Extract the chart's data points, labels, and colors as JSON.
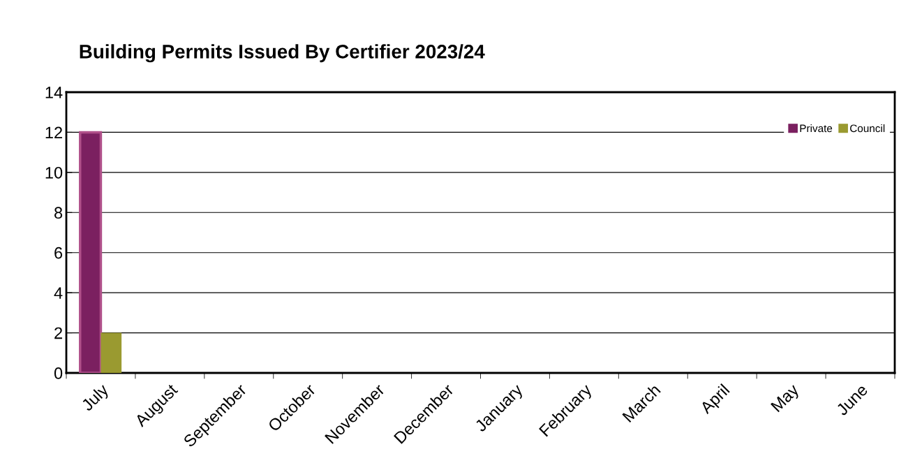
{
  "chart_data": {
    "type": "bar",
    "title": "Building Permits Issued By Certifier 2023/24",
    "categories": [
      "July",
      "August",
      "September",
      "October",
      "November",
      "December",
      "January",
      "February",
      "March",
      "April",
      "May",
      "June"
    ],
    "series": [
      {
        "name": "Private",
        "color": "#7b2060",
        "values": [
          12,
          null,
          null,
          null,
          null,
          null,
          null,
          null,
          null,
          null,
          null,
          null
        ]
      },
      {
        "name": "Council",
        "color": "#9a9a30",
        "values": [
          2,
          null,
          null,
          null,
          null,
          null,
          null,
          null,
          null,
          null,
          null,
          null
        ]
      }
    ],
    "ylim": [
      0,
      14
    ],
    "yticks": [
      0,
      2,
      4,
      6,
      8,
      10,
      12,
      14
    ],
    "grid": "y",
    "legend": "top right"
  }
}
